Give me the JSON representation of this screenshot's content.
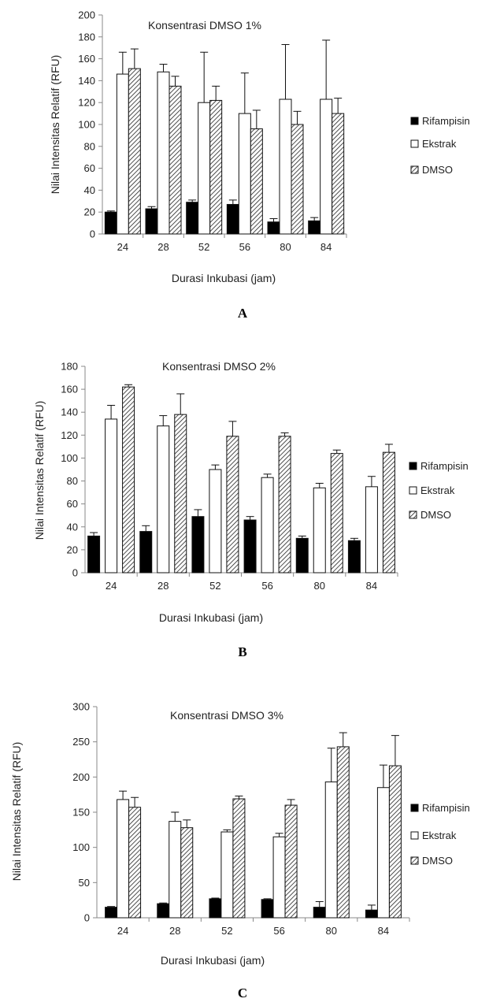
{
  "chart_data": [
    {
      "type": "bar",
      "panel_label": "A",
      "title": "Konsentrasi DMSO 1%",
      "xlabel": "Durasi Inkubasi (jam)",
      "ylabel": "Nilai Intensitas Relatif (RFU)",
      "categories": [
        "24",
        "28",
        "52",
        "56",
        "80",
        "84"
      ],
      "ylim": [
        0,
        200
      ],
      "yticks": [
        0,
        20,
        40,
        60,
        80,
        100,
        120,
        140,
        160,
        180,
        200
      ],
      "legend_position": "right",
      "series": [
        {
          "name": "Rifampisin",
          "values": [
            20,
            23,
            29,
            27,
            11,
            12
          ],
          "errors": [
            1,
            2,
            2,
            4,
            3,
            3
          ]
        },
        {
          "name": "Ekstrak",
          "values": [
            146,
            148,
            120,
            110,
            123,
            123
          ],
          "errors": [
            20,
            7,
            46,
            37,
            50,
            54
          ]
        },
        {
          "name": "DMSO",
          "values": [
            151,
            135,
            122,
            96,
            100,
            110
          ],
          "errors": [
            18,
            9,
            13,
            17,
            12,
            14
          ]
        }
      ]
    },
    {
      "type": "bar",
      "panel_label": "B",
      "title": "Konsentrasi DMSO 2%",
      "xlabel": "Durasi Inkubasi (jam)",
      "ylabel": "Nilai Intensitas Relatif (RFU)",
      "categories": [
        "24",
        "28",
        "52",
        "56",
        "80",
        "84"
      ],
      "ylim": [
        0,
        180
      ],
      "yticks": [
        0,
        20,
        40,
        60,
        80,
        100,
        120,
        140,
        160,
        180
      ],
      "legend_position": "right",
      "series": [
        {
          "name": "Rifampisin",
          "values": [
            32,
            36,
            49,
            46,
            30,
            28
          ],
          "errors": [
            3,
            5,
            6,
            3,
            2,
            2
          ]
        },
        {
          "name": "Ekstrak",
          "values": [
            134,
            128,
            90,
            83,
            74,
            75
          ],
          "errors": [
            12,
            9,
            4,
            3,
            4,
            9
          ]
        },
        {
          "name": "DMSO",
          "values": [
            162,
            138,
            119,
            119,
            104,
            105
          ],
          "errors": [
            2,
            18,
            13,
            3,
            3,
            7
          ]
        }
      ]
    },
    {
      "type": "bar",
      "panel_label": "C",
      "title": "Konsentrasi DMSO 3%",
      "xlabel": "Durasi Inkubasi (jam)",
      "ylabel": "Nilai Intensitas Relatif (RFU)",
      "categories": [
        "24",
        "28",
        "52",
        "56",
        "80",
        "84"
      ],
      "ylim": [
        0,
        300
      ],
      "yticks": [
        0,
        50,
        100,
        150,
        200,
        250,
        300
      ],
      "legend_position": "right",
      "series": [
        {
          "name": "Rifampisin",
          "values": [
            15,
            20,
            27,
            26,
            15,
            11
          ],
          "errors": [
            1,
            1,
            1,
            1,
            8,
            7
          ]
        },
        {
          "name": "Ekstrak",
          "values": [
            168,
            137,
            122,
            115,
            193,
            185
          ],
          "errors": [
            12,
            13,
            3,
            5,
            48,
            32
          ]
        },
        {
          "name": "DMSO",
          "values": [
            157,
            128,
            169,
            160,
            243,
            216
          ],
          "errors": [
            14,
            11,
            4,
            8,
            20,
            43
          ]
        }
      ]
    }
  ],
  "colors": {
    "rifampisin": "#000000",
    "ekstrak": "#ffffff",
    "dmso_hatch": "#333333",
    "axis": "#888888"
  }
}
